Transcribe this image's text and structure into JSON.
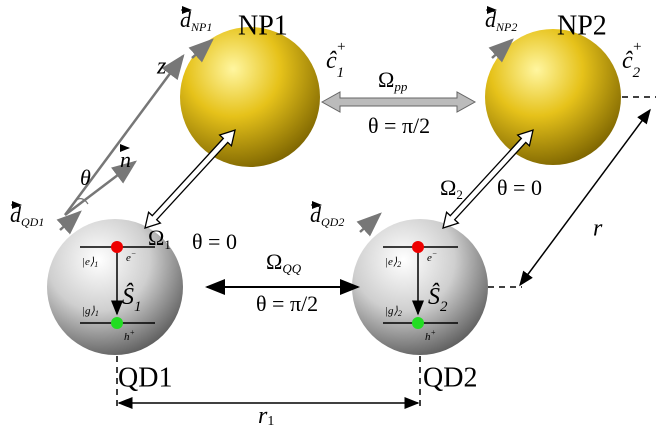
{
  "nanoparticles": [
    {
      "label": "NP1",
      "operator": {
        "symbol": "ĉ",
        "sub": "1",
        "sup": "+"
      },
      "dipole": {
        "symbol": "d",
        "sub": "NP1"
      }
    },
    {
      "label": "NP2",
      "operator": {
        "symbol": "ĉ",
        "sub": "2",
        "sup": "+"
      },
      "dipole": {
        "symbol": "d",
        "sub": "NP2"
      }
    }
  ],
  "quantum_dots": [
    {
      "label": "QD1",
      "operator": {
        "symbol": "Ŝ",
        "sub": "1"
      },
      "dipole": {
        "symbol": "d",
        "sub": "QD1"
      },
      "excited": {
        "symbol": "|e⟩",
        "sub": "1"
      },
      "ground": {
        "symbol": "|g⟩",
        "sub": "1"
      },
      "electron": {
        "symbol": "e",
        "sup": "−"
      },
      "hole": {
        "symbol": "h",
        "sup": "+"
      }
    },
    {
      "label": "QD2",
      "operator": {
        "symbol": "Ŝ",
        "sub": "2"
      },
      "dipole": {
        "symbol": "d",
        "sub": "QD2"
      },
      "excited": {
        "symbol": "|e⟩",
        "sub": "2"
      },
      "ground": {
        "symbol": "|g⟩",
        "sub": "2"
      },
      "electron": {
        "symbol": "e",
        "sup": "−"
      },
      "hole": {
        "symbol": "h",
        "sup": "+"
      }
    }
  ],
  "couplings": [
    {
      "symbol": "Ω",
      "sub": "pp",
      "angle": "θ = π/2"
    },
    {
      "symbol": "Ω",
      "sub": "1",
      "angle": "θ = 0"
    },
    {
      "symbol": "Ω",
      "sub": "2",
      "angle": "θ = 0"
    },
    {
      "symbol": "Ω",
      "sub": "QQ",
      "angle": "θ = π/2"
    }
  ],
  "axes": {
    "z": "z",
    "n": "n",
    "theta": "θ"
  },
  "distances": {
    "r": "r",
    "r1": {
      "symbol": "r",
      "sub": "1"
    }
  }
}
